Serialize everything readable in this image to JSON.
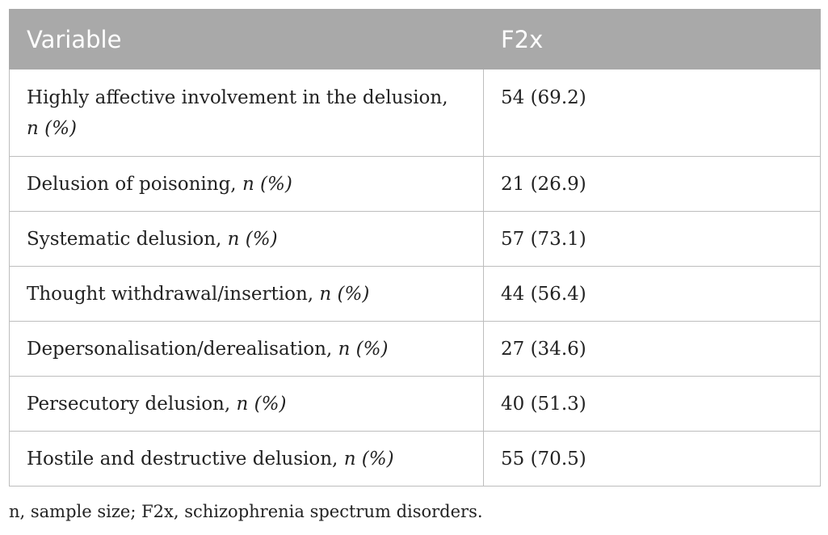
{
  "table": {
    "headers": [
      "Variable",
      "F2x"
    ],
    "rows": [
      {
        "variable": "Highly affective involvement in the delusion,",
        "stat": "n (%)",
        "value": "54 (69.2)"
      },
      {
        "variable": "Delusion of poisoning,",
        "stat": "n (%)",
        "value": "21 (26.9)"
      },
      {
        "variable": "Systematic delusion,",
        "stat": "n (%)",
        "value": "57 (73.1)"
      },
      {
        "variable": "Thought withdrawal/insertion,",
        "stat": "n (%)",
        "value": "44 (56.4)"
      },
      {
        "variable": "Depersonalisation/derealisation,",
        "stat": "n (%)",
        "value": "27 (34.6)"
      },
      {
        "variable": "Persecutory delusion,",
        "stat": "n (%)",
        "value": "40 (51.3)"
      },
      {
        "variable": "Hostile and destructive delusion,",
        "stat": "n (%)",
        "value": "55 (70.5)"
      }
    ]
  },
  "footnote": "n, sample size; F2x, schizophrenia spectrum disorders.",
  "colors": {
    "header_bg": "#a9a9a9",
    "header_text": "#ffffff",
    "border": "#bdbdbd"
  }
}
